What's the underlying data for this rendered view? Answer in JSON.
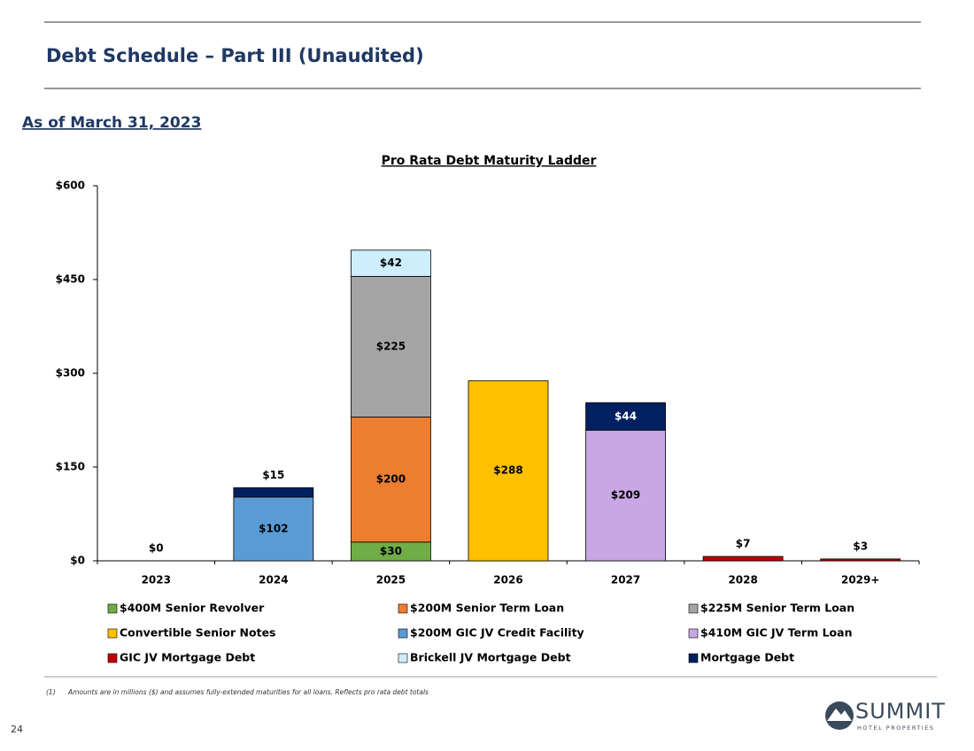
{
  "header": {
    "title": "Debt Schedule – Part III (Unaudited)",
    "subtitle": "As of March 31, 2023"
  },
  "chart_data": {
    "type": "stacked_bar",
    "title": "Pro Rata Debt Maturity Ladder",
    "categories": [
      "2023",
      "2024",
      "2025",
      "2026",
      "2027",
      "2028",
      "2029+"
    ],
    "ylim": [
      0,
      600
    ],
    "yticks": [
      {
        "value": 0,
        "label": "$0"
      },
      {
        "value": 150,
        "label": "$150"
      },
      {
        "value": 300,
        "label": "$300"
      },
      {
        "value": 450,
        "label": "$450"
      },
      {
        "value": 600,
        "label": "$600"
      }
    ],
    "series": [
      {
        "name": "$400M Senior Revolver",
        "color": "#70ad47",
        "values": [
          null,
          null,
          30,
          null,
          null,
          null,
          null
        ],
        "value_labels": [
          null,
          null,
          "$30",
          null,
          null,
          null,
          null
        ]
      },
      {
        "name": "$200M Senior Term Loan",
        "color": "#ed7d31",
        "values": [
          null,
          null,
          200,
          null,
          null,
          null,
          null
        ],
        "value_labels": [
          null,
          null,
          "$200",
          null,
          null,
          null,
          null
        ]
      },
      {
        "name": "$225M Senior Term Loan",
        "color": "#a5a5a5",
        "values": [
          null,
          null,
          225,
          null,
          null,
          null,
          null
        ],
        "value_labels": [
          null,
          null,
          "$225",
          null,
          null,
          null,
          null
        ]
      },
      {
        "name": "Convertible Senior Notes",
        "color": "#ffc000",
        "values": [
          null,
          null,
          null,
          288,
          null,
          null,
          null
        ],
        "value_labels": [
          null,
          null,
          null,
          "$288",
          null,
          null,
          null
        ]
      },
      {
        "name": "$200M GIC JV Credit Facility",
        "color": "#5b9bd5",
        "values": [
          null,
          102,
          null,
          null,
          null,
          null,
          null
        ],
        "value_labels": [
          null,
          "$102",
          null,
          null,
          null,
          null,
          null
        ]
      },
      {
        "name": "$410M GIC JV Term Loan",
        "color": "#c9a7e4",
        "values": [
          null,
          null,
          null,
          null,
          209,
          null,
          null
        ],
        "value_labels": [
          null,
          null,
          null,
          null,
          "$209",
          null,
          null
        ]
      },
      {
        "name": "GIC JV Mortgage Debt",
        "color": "#c00000",
        "values": [
          null,
          null,
          null,
          null,
          null,
          7,
          3
        ],
        "value_labels": [
          null,
          null,
          null,
          null,
          null,
          "$7",
          "$3"
        ]
      },
      {
        "name": "Brickell JV Mortgage Debt",
        "color": "#cdeefc",
        "values": [
          null,
          null,
          42,
          null,
          null,
          null,
          null
        ],
        "value_labels": [
          null,
          null,
          "$42",
          null,
          null,
          null,
          null
        ]
      },
      {
        "name": "Mortgage Debt",
        "color": "#002060",
        "values": [
          0,
          15,
          null,
          null,
          44,
          null,
          null
        ],
        "value_labels": [
          "$0",
          "$15",
          null,
          null,
          "$44",
          null,
          null
        ]
      }
    ]
  },
  "footnote": {
    "marker": "(1)",
    "text": "Amounts are in millions ($) and assumes fully-extended maturities for all loans. Reflects pro rata debt totals"
  },
  "page_number": 24,
  "logo": {
    "name": "SUMMIT",
    "tagline": "HOTEL PROPERTIES"
  }
}
